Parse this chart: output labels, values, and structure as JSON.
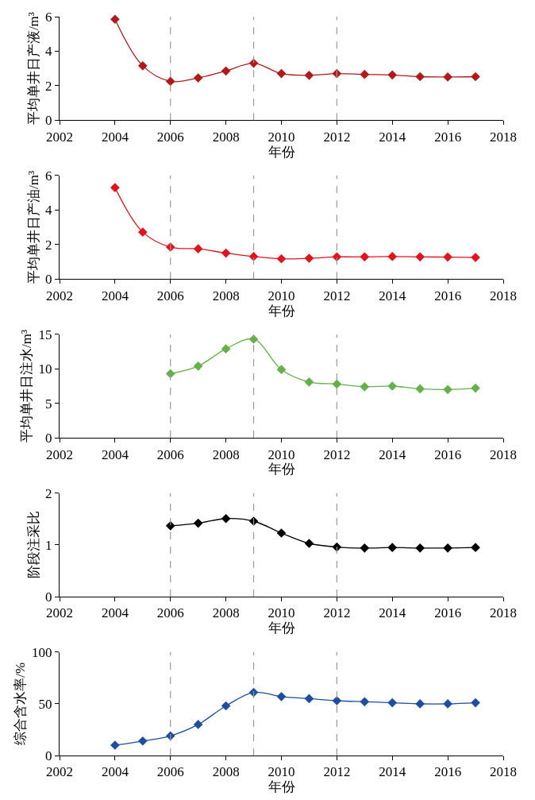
{
  "chart_data": [
    {
      "type": "line",
      "xlabel": "年份",
      "ylabel": "平均单井日产液/m³",
      "x": [
        2004,
        2005,
        2006,
        2007,
        2008,
        2009,
        2010,
        2011,
        2012,
        2013,
        2014,
        2015,
        2016,
        2017
      ],
      "xlim": [
        2002,
        2018
      ],
      "xticks": [
        2002,
        2004,
        2006,
        2008,
        2010,
        2012,
        2014,
        2016,
        2018
      ],
      "ylim": [
        0,
        6
      ],
      "yticks": [
        0,
        2,
        4,
        6
      ],
      "marker": "diamond",
      "line_style": "solid",
      "series": [
        {
          "color": "#b01a1a",
          "values": [
            5.85,
            3.15,
            2.25,
            2.45,
            2.85,
            3.3,
            2.7,
            2.6,
            2.7,
            2.65,
            2.62,
            2.52,
            2.5,
            2.52
          ]
        }
      ],
      "ref_lines": [
        {
          "axis": "x",
          "value": 2006,
          "color": "#999999",
          "line_style": "dashed"
        },
        {
          "axis": "x",
          "value": 2009,
          "color": "#999999",
          "line_style": "dashed"
        },
        {
          "axis": "x",
          "value": 2012,
          "color": "#999999",
          "line_style": "dashed"
        }
      ]
    },
    {
      "type": "line",
      "xlabel": "年份",
      "ylabel": "平均单井日产油/m³",
      "x": [
        2004,
        2005,
        2006,
        2007,
        2008,
        2009,
        2010,
        2011,
        2012,
        2013,
        2014,
        2015,
        2016,
        2017
      ],
      "xlim": [
        2002,
        2018
      ],
      "xticks": [
        2002,
        2004,
        2006,
        2008,
        2010,
        2012,
        2014,
        2016,
        2018
      ],
      "ylim": [
        0,
        6
      ],
      "yticks": [
        0,
        2,
        4,
        6
      ],
      "marker": "diamond",
      "line_style": "solid",
      "series": [
        {
          "color": "#e0141e",
          "values": [
            5.3,
            2.72,
            1.85,
            1.75,
            1.5,
            1.3,
            1.17,
            1.2,
            1.28,
            1.28,
            1.3,
            1.28,
            1.27,
            1.25
          ]
        }
      ],
      "ref_lines": [
        {
          "axis": "x",
          "value": 2006,
          "color": "#999999",
          "line_style": "dashed"
        },
        {
          "axis": "x",
          "value": 2009,
          "color": "#999999",
          "line_style": "dashed"
        },
        {
          "axis": "x",
          "value": 2012,
          "color": "#999999",
          "line_style": "dashed"
        }
      ]
    },
    {
      "type": "line",
      "xlabel": "年份",
      "ylabel": "平均单井日注水/m³",
      "x": [
        2006,
        2007,
        2008,
        2009,
        2010,
        2011,
        2012,
        2013,
        2014,
        2015,
        2016,
        2017
      ],
      "xlim": [
        2002,
        2018
      ],
      "xticks": [
        2002,
        2004,
        2006,
        2008,
        2010,
        2012,
        2014,
        2016,
        2018
      ],
      "ylim": [
        0,
        15
      ],
      "yticks": [
        0,
        5,
        10,
        15
      ],
      "marker": "diamond",
      "line_style": "solid",
      "series": [
        {
          "color": "#66b04a",
          "values": [
            9.3,
            10.4,
            12.9,
            14.3,
            9.9,
            8.1,
            7.8,
            7.4,
            7.5,
            7.1,
            7.0,
            7.2
          ]
        }
      ],
      "ref_lines": [
        {
          "axis": "x",
          "value": 2006,
          "color": "#999999",
          "line_style": "dashed"
        },
        {
          "axis": "x",
          "value": 2009,
          "color": "#999999",
          "line_style": "dashed"
        },
        {
          "axis": "x",
          "value": 2012,
          "color": "#999999",
          "line_style": "dashed"
        }
      ]
    },
    {
      "type": "line",
      "xlabel": "年份",
      "ylabel": "阶段注采比",
      "x": [
        2006,
        2007,
        2008,
        2009,
        2010,
        2011,
        2012,
        2013,
        2014,
        2015,
        2016,
        2017
      ],
      "xlim": [
        2002,
        2018
      ],
      "xticks": [
        2002,
        2004,
        2006,
        2008,
        2010,
        2012,
        2014,
        2016,
        2018
      ],
      "ylim": [
        0,
        2
      ],
      "yticks": [
        0,
        1,
        2
      ],
      "marker": "diamond",
      "line_style": "solid",
      "series": [
        {
          "color": "#000000",
          "values": [
            1.37,
            1.42,
            1.51,
            1.46,
            1.23,
            1.03,
            0.96,
            0.94,
            0.95,
            0.94,
            0.94,
            0.95
          ]
        }
      ],
      "ref_lines": [
        {
          "axis": "x",
          "value": 2006,
          "color": "#999999",
          "line_style": "dashed"
        },
        {
          "axis": "x",
          "value": 2009,
          "color": "#999999",
          "line_style": "dashed"
        },
        {
          "axis": "x",
          "value": 2012,
          "color": "#999999",
          "line_style": "dashed"
        }
      ]
    },
    {
      "type": "line",
      "xlabel": "年份",
      "ylabel": "综合含水率/%",
      "x": [
        2004,
        2005,
        2006,
        2007,
        2008,
        2009,
        2010,
        2011,
        2012,
        2013,
        2014,
        2015,
        2016,
        2017
      ],
      "xlim": [
        2002,
        2018
      ],
      "xticks": [
        2002,
        2004,
        2006,
        2008,
        2010,
        2012,
        2014,
        2016,
        2018
      ],
      "ylim": [
        0,
        100
      ],
      "yticks": [
        0,
        50,
        100
      ],
      "marker": "diamond",
      "line_style": "solid",
      "series": [
        {
          "color": "#1f4e9e",
          "values": [
            10,
            14,
            19,
            30,
            48,
            61,
            57,
            55,
            53,
            52,
            51,
            50,
            50,
            51
          ]
        }
      ],
      "ref_lines": [
        {
          "axis": "x",
          "value": 2006,
          "color": "#999999",
          "line_style": "dashed"
        },
        {
          "axis": "x",
          "value": 2009,
          "color": "#999999",
          "line_style": "dashed"
        },
        {
          "axis": "x",
          "value": 2012,
          "color": "#999999",
          "line_style": "dashed"
        }
      ]
    }
  ]
}
